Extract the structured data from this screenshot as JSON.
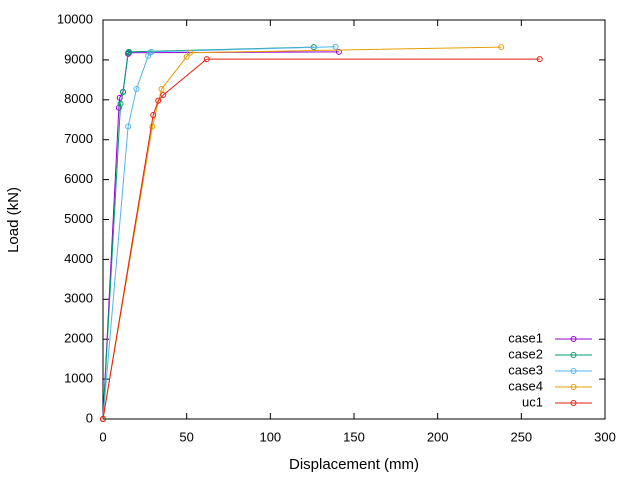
{
  "chart_data": {
    "type": "line",
    "xlabel": "Displacement (mm)",
    "ylabel": "Load (kN)",
    "xlim": [
      0,
      300
    ],
    "xticks": [
      0,
      50,
      100,
      150,
      200,
      250,
      300
    ],
    "ylim": [
      0,
      10000
    ],
    "yticks": [
      0,
      1000,
      2000,
      3000,
      4000,
      5000,
      6000,
      7000,
      8000,
      9000,
      10000
    ],
    "legend": "bottom-right",
    "series": [
      {
        "name": "case1",
        "color": "#9400d3",
        "x": [
          0,
          9.5,
          10,
          12,
          15,
          15.5,
          141
        ],
        "values": [
          0,
          7800,
          8050,
          8200,
          9150,
          9180,
          9200
        ]
      },
      {
        "name": "case2",
        "color": "#009e73",
        "x": [
          0,
          10.5,
          12,
          15,
          15.5,
          126
        ],
        "values": [
          0,
          7900,
          8200,
          9180,
          9200,
          9320
        ]
      },
      {
        "name": "case3",
        "color": "#56b4e9",
        "x": [
          0,
          15,
          20,
          27,
          28,
          29,
          139
        ],
        "values": [
          0,
          7330,
          8270,
          9100,
          9180,
          9200,
          9330
        ]
      },
      {
        "name": "case4",
        "color": "#e69f00",
        "x": [
          0,
          29.5,
          35,
          50,
          52,
          238
        ],
        "values": [
          0,
          7330,
          8270,
          9080,
          9180,
          9320
        ]
      },
      {
        "name": "uc1",
        "color": "#e51e10",
        "x": [
          0,
          30,
          33,
          36,
          62,
          261
        ],
        "values": [
          0,
          7620,
          7980,
          8120,
          9020,
          9020
        ]
      }
    ]
  }
}
